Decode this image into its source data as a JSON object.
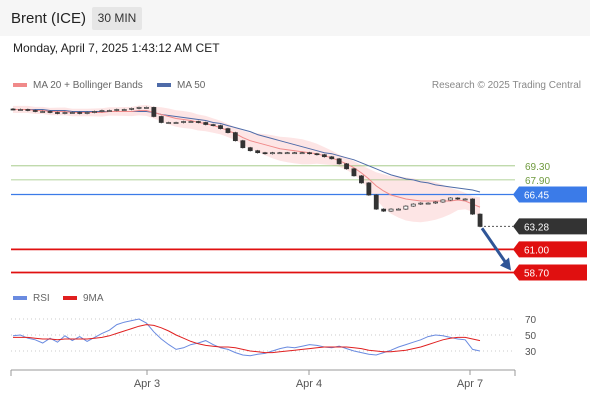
{
  "header": {
    "title": "Brent (ICE)",
    "timeframe": "30 MIN"
  },
  "datetime": "Monday, April 7, 2025 1:43:12 AM CET",
  "legend": {
    "ma20": "MA 20 + Bollinger Bands",
    "ma50": "MA 50",
    "research": "Research © 2025 Trading Central"
  },
  "rsi_legend": {
    "rsi": "RSI",
    "ma9": "9MA"
  },
  "colors": {
    "bollinger_fill": "#fde0e0",
    "ma20": "#f08a8a",
    "ma50": "#4e6ba8",
    "candle": "#333333",
    "pivot": "#3b7be8",
    "resistance": "#9ac47a",
    "support": "#e01010",
    "arrow": "#2f5597",
    "last_price": "#333333",
    "rsi": "#6a8be0",
    "rsi_ma": "#e02020"
  },
  "chart_data": [
    {
      "type": "line",
      "title": "Brent (ICE)",
      "timeframe": "30 MIN",
      "x_tick_labels": [
        "Apr 3",
        "Apr 4",
        "Apr 7"
      ],
      "price_levels": [
        {
          "label": "69.30",
          "value": 69.3,
          "kind": "resistance"
        },
        {
          "label": "67.90",
          "value": 67.9,
          "kind": "resistance"
        },
        {
          "label": "66.45",
          "value": 66.45,
          "kind": "pivot"
        },
        {
          "label": "63.28",
          "value": 63.28,
          "kind": "last"
        },
        {
          "label": "61.00",
          "value": 61.0,
          "kind": "support"
        },
        {
          "label": "58.70",
          "value": 58.7,
          "kind": "support"
        }
      ],
      "series": [
        {
          "name": "Price",
          "values": [
            74.9,
            74.9,
            74.8,
            74.7,
            74.7,
            74.6,
            74.5,
            74.6,
            74.6,
            74.5,
            74.6,
            74.7,
            74.8,
            74.8,
            74.9,
            74.9,
            75.0,
            75.1,
            75.1,
            74.2,
            73.6,
            73.6,
            73.6,
            73.7,
            73.7,
            73.6,
            73.4,
            73.3,
            73.0,
            72.6,
            71.8,
            71.1,
            70.8,
            70.6,
            70.5,
            70.6,
            70.6,
            70.6,
            70.6,
            70.6,
            70.5,
            70.4,
            70.2,
            70.0,
            69.5,
            69.0,
            68.3,
            67.6,
            66.4,
            65.0,
            64.8,
            65.0,
            65.0,
            65.3,
            65.5,
            65.6,
            65.6,
            65.7,
            65.9,
            66.1,
            66.0,
            66.0,
            64.5,
            63.28
          ]
        },
        {
          "name": "MA 20",
          "values": [
            74.9,
            74.9,
            74.9,
            74.8,
            74.8,
            74.7,
            74.7,
            74.7,
            74.6,
            74.6,
            74.6,
            74.6,
            74.6,
            74.7,
            74.7,
            74.7,
            74.7,
            74.8,
            74.8,
            74.6,
            74.4,
            74.2,
            74.0,
            73.9,
            73.8,
            73.6,
            73.5,
            73.3,
            73.1,
            72.8,
            72.5,
            72.1,
            71.8,
            71.6,
            71.4,
            71.2,
            71.0,
            70.9,
            70.8,
            70.7,
            70.6,
            70.5,
            70.3,
            70.1,
            69.8,
            69.5,
            69.1,
            68.6,
            68.0,
            67.3,
            66.8,
            66.4,
            66.2,
            66.0,
            65.9,
            65.8,
            65.8,
            65.8,
            65.8,
            65.8,
            65.9,
            65.8,
            65.5,
            65.2
          ]
        },
        {
          "name": "MA 50",
          "values": [
            74.9,
            74.9,
            74.9,
            74.9,
            74.9,
            74.8,
            74.8,
            74.8,
            74.7,
            74.7,
            74.7,
            74.7,
            74.7,
            74.7,
            74.7,
            74.7,
            74.7,
            74.7,
            74.7,
            74.6,
            74.4,
            74.3,
            74.2,
            74.1,
            74.0,
            73.9,
            73.8,
            73.6,
            73.5,
            73.3,
            73.1,
            72.9,
            72.7,
            72.4,
            72.2,
            72.0,
            71.8,
            71.6,
            71.4,
            71.2,
            71.0,
            70.8,
            70.6,
            70.5,
            70.3,
            70.1,
            69.9,
            69.6,
            69.3,
            69.0,
            68.7,
            68.4,
            68.2,
            68.0,
            67.9,
            67.7,
            67.6,
            67.4,
            67.3,
            67.2,
            67.1,
            67.0,
            66.9,
            66.7
          ]
        }
      ]
    },
    {
      "type": "line",
      "title": "RSI",
      "y_ticks": [
        70,
        50,
        30
      ],
      "ylim": [
        10,
        90
      ],
      "series": [
        {
          "name": "RSI",
          "values": [
            49,
            50,
            46,
            44,
            40,
            46,
            41,
            49,
            43,
            48,
            42,
            47,
            52,
            56,
            63,
            66,
            68,
            70,
            65,
            54,
            45,
            38,
            32,
            34,
            38,
            40,
            43,
            38,
            34,
            32,
            28,
            25,
            24,
            26,
            27,
            30,
            33,
            35,
            34,
            36,
            38,
            37,
            35,
            34,
            36,
            33,
            30,
            28,
            26,
            25,
            28,
            31,
            35,
            38,
            41,
            44,
            48,
            50,
            49,
            47,
            45,
            44,
            32,
            30
          ]
        },
        {
          "name": "9MA",
          "values": [
            47,
            47,
            47,
            46,
            45,
            45,
            44,
            45,
            45,
            45,
            45,
            46,
            47,
            49,
            52,
            55,
            58,
            61,
            63,
            62,
            59,
            55,
            50,
            46,
            42,
            39,
            37,
            36,
            35,
            35,
            34,
            32,
            30,
            29,
            28,
            28,
            29,
            30,
            31,
            32,
            33,
            34,
            35,
            35,
            35,
            35,
            34,
            33,
            31,
            30,
            29,
            29,
            30,
            31,
            33,
            35,
            38,
            41,
            44,
            46,
            47,
            47,
            45,
            43
          ]
        }
      ]
    }
  ]
}
